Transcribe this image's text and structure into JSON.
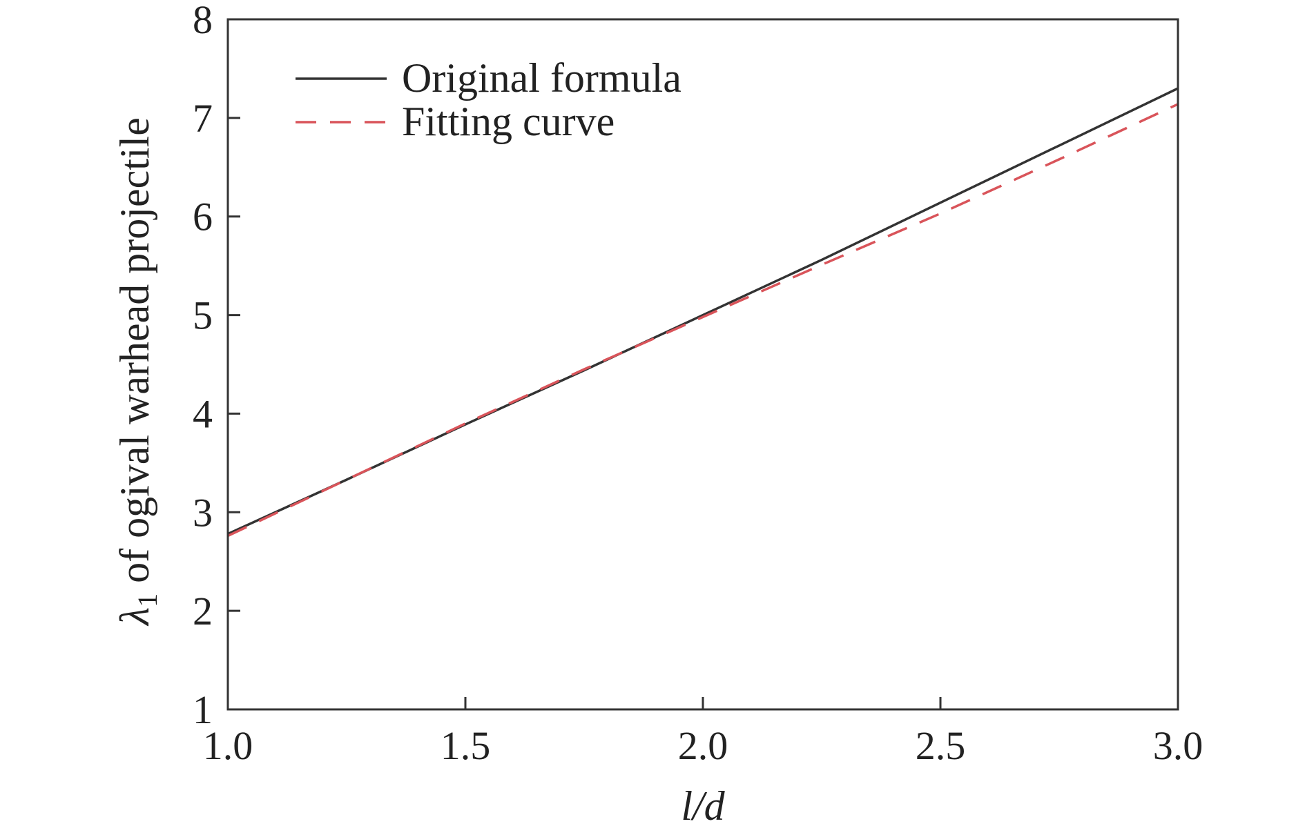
{
  "chart_data": {
    "type": "line",
    "xlabel": "l/d",
    "ylabel_symbol": "λ",
    "ylabel_subscript": "1",
    "ylabel_text": " of ogival warhead projectile",
    "xlim": [
      1.0,
      3.0
    ],
    "ylim": [
      1,
      8
    ],
    "x_ticks": [
      "1.0",
      "1.5",
      "2.0",
      "2.5",
      "3.0"
    ],
    "y_ticks": [
      "1",
      "2",
      "3",
      "4",
      "5",
      "6",
      "7",
      "8"
    ],
    "grid": false,
    "legend_position": "top-left",
    "series": [
      {
        "name": "Original formula",
        "style": "solid",
        "color": "#333333",
        "x": [
          1.0,
          1.25,
          1.5,
          1.75,
          2.0,
          2.25,
          2.5,
          2.75,
          3.0
        ],
        "y": [
          2.78,
          3.33,
          3.89,
          4.44,
          5.0,
          5.56,
          6.14,
          6.72,
          7.3
        ]
      },
      {
        "name": "Fitting curve",
        "style": "dashed",
        "color": "#d9545a",
        "x": [
          1.0,
          1.25,
          1.5,
          1.75,
          2.0,
          2.25,
          2.5,
          2.75,
          3.0
        ],
        "y": [
          2.76,
          3.33,
          3.9,
          4.45,
          4.98,
          5.51,
          6.03,
          6.58,
          7.14
        ]
      }
    ]
  }
}
